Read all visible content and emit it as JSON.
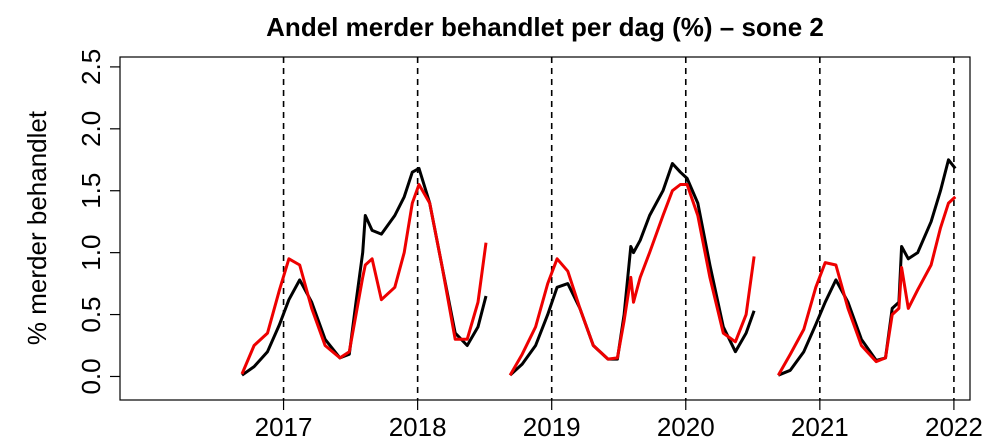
{
  "chart_data": {
    "type": "line",
    "title": "Andel merder behandlet per dag (%) – sone 2",
    "y_label": "% merder behandlet",
    "x": [
      2016.69,
      2016.78,
      2016.88,
      2016.97,
      2017.04,
      2017.12,
      2017.21,
      2017.31,
      2017.42,
      2017.49,
      2017.54,
      2017.59,
      2017.61,
      2017.66,
      2017.73,
      2017.83,
      2017.9,
      2017.96,
      2018.01,
      2018.09,
      2018.18,
      2018.28,
      2018.37,
      2018.45,
      2018.51,
      null,
      2018.69,
      2018.78,
      2018.88,
      2018.97,
      2019.04,
      2019.12,
      2019.21,
      2019.31,
      2019.42,
      2019.49,
      2019.54,
      2019.59,
      2019.61,
      2019.66,
      2019.73,
      2019.83,
      2019.9,
      2019.96,
      2020.01,
      2020.09,
      2020.18,
      2020.28,
      2020.37,
      2020.45,
      2020.51,
      null,
      2020.69,
      2020.78,
      2020.88,
      2020.97,
      2021.04,
      2021.12,
      2021.21,
      2021.31,
      2021.42,
      2021.49,
      2021.54,
      2021.59,
      2021.61,
      2021.66,
      2021.73,
      2021.83,
      2021.9,
      2021.96,
      2022.01
    ],
    "series": [
      {
        "name": "black",
        "color": "#000000",
        "values": [
          0.01,
          0.08,
          0.2,
          0.42,
          0.62,
          0.78,
          0.6,
          0.3,
          0.15,
          0.18,
          0.6,
          1.0,
          1.3,
          1.18,
          1.15,
          1.3,
          1.45,
          1.65,
          1.68,
          1.4,
          0.9,
          0.35,
          0.25,
          0.4,
          0.65,
          null,
          0.01,
          0.1,
          0.25,
          0.5,
          0.72,
          0.75,
          0.55,
          0.25,
          0.14,
          0.14,
          0.5,
          1.05,
          1.0,
          1.1,
          1.3,
          1.5,
          1.72,
          1.65,
          1.6,
          1.4,
          0.9,
          0.4,
          0.2,
          0.35,
          0.53,
          null,
          0.01,
          0.05,
          0.2,
          0.42,
          0.6,
          0.78,
          0.6,
          0.3,
          0.13,
          0.15,
          0.55,
          0.6,
          1.05,
          0.95,
          1.0,
          1.25,
          1.5,
          1.75,
          1.68
        ]
      },
      {
        "name": "red",
        "color": "#ee0000",
        "values": [
          0.02,
          0.25,
          0.35,
          0.7,
          0.95,
          0.9,
          0.55,
          0.25,
          0.15,
          0.2,
          0.5,
          0.8,
          0.9,
          0.95,
          0.62,
          0.72,
          1.0,
          1.4,
          1.55,
          1.4,
          0.9,
          0.3,
          0.3,
          0.6,
          1.08,
          null,
          0.01,
          0.18,
          0.4,
          0.75,
          0.95,
          0.85,
          0.55,
          0.25,
          0.14,
          0.15,
          0.45,
          0.8,
          0.6,
          0.8,
          1.0,
          1.3,
          1.5,
          1.55,
          1.55,
          1.3,
          0.8,
          0.35,
          0.28,
          0.5,
          0.97,
          null,
          0.01,
          0.18,
          0.38,
          0.72,
          0.92,
          0.9,
          0.55,
          0.25,
          0.12,
          0.15,
          0.5,
          0.55,
          0.88,
          0.55,
          0.7,
          0.9,
          1.2,
          1.4,
          1.45
        ]
      }
    ],
    "xlim": [
      2015.78,
      2022.12
    ],
    "xticks": [
      2017,
      2018,
      2019,
      2020,
      2021,
      2022
    ],
    "vlines": [
      2017,
      2018,
      2019,
      2020,
      2021,
      2022
    ],
    "ylim": [
      -0.19,
      2.58
    ],
    "yticks": [
      {
        "value": 0,
        "label": "0.0"
      },
      {
        "value": 0.5,
        "label": "0.5"
      },
      {
        "value": 1,
        "label": "1.0"
      },
      {
        "value": 1.5,
        "label": "1.5"
      },
      {
        "value": 2,
        "label": "2.0"
      },
      {
        "value": 2.5,
        "label": "2.5"
      }
    ]
  }
}
